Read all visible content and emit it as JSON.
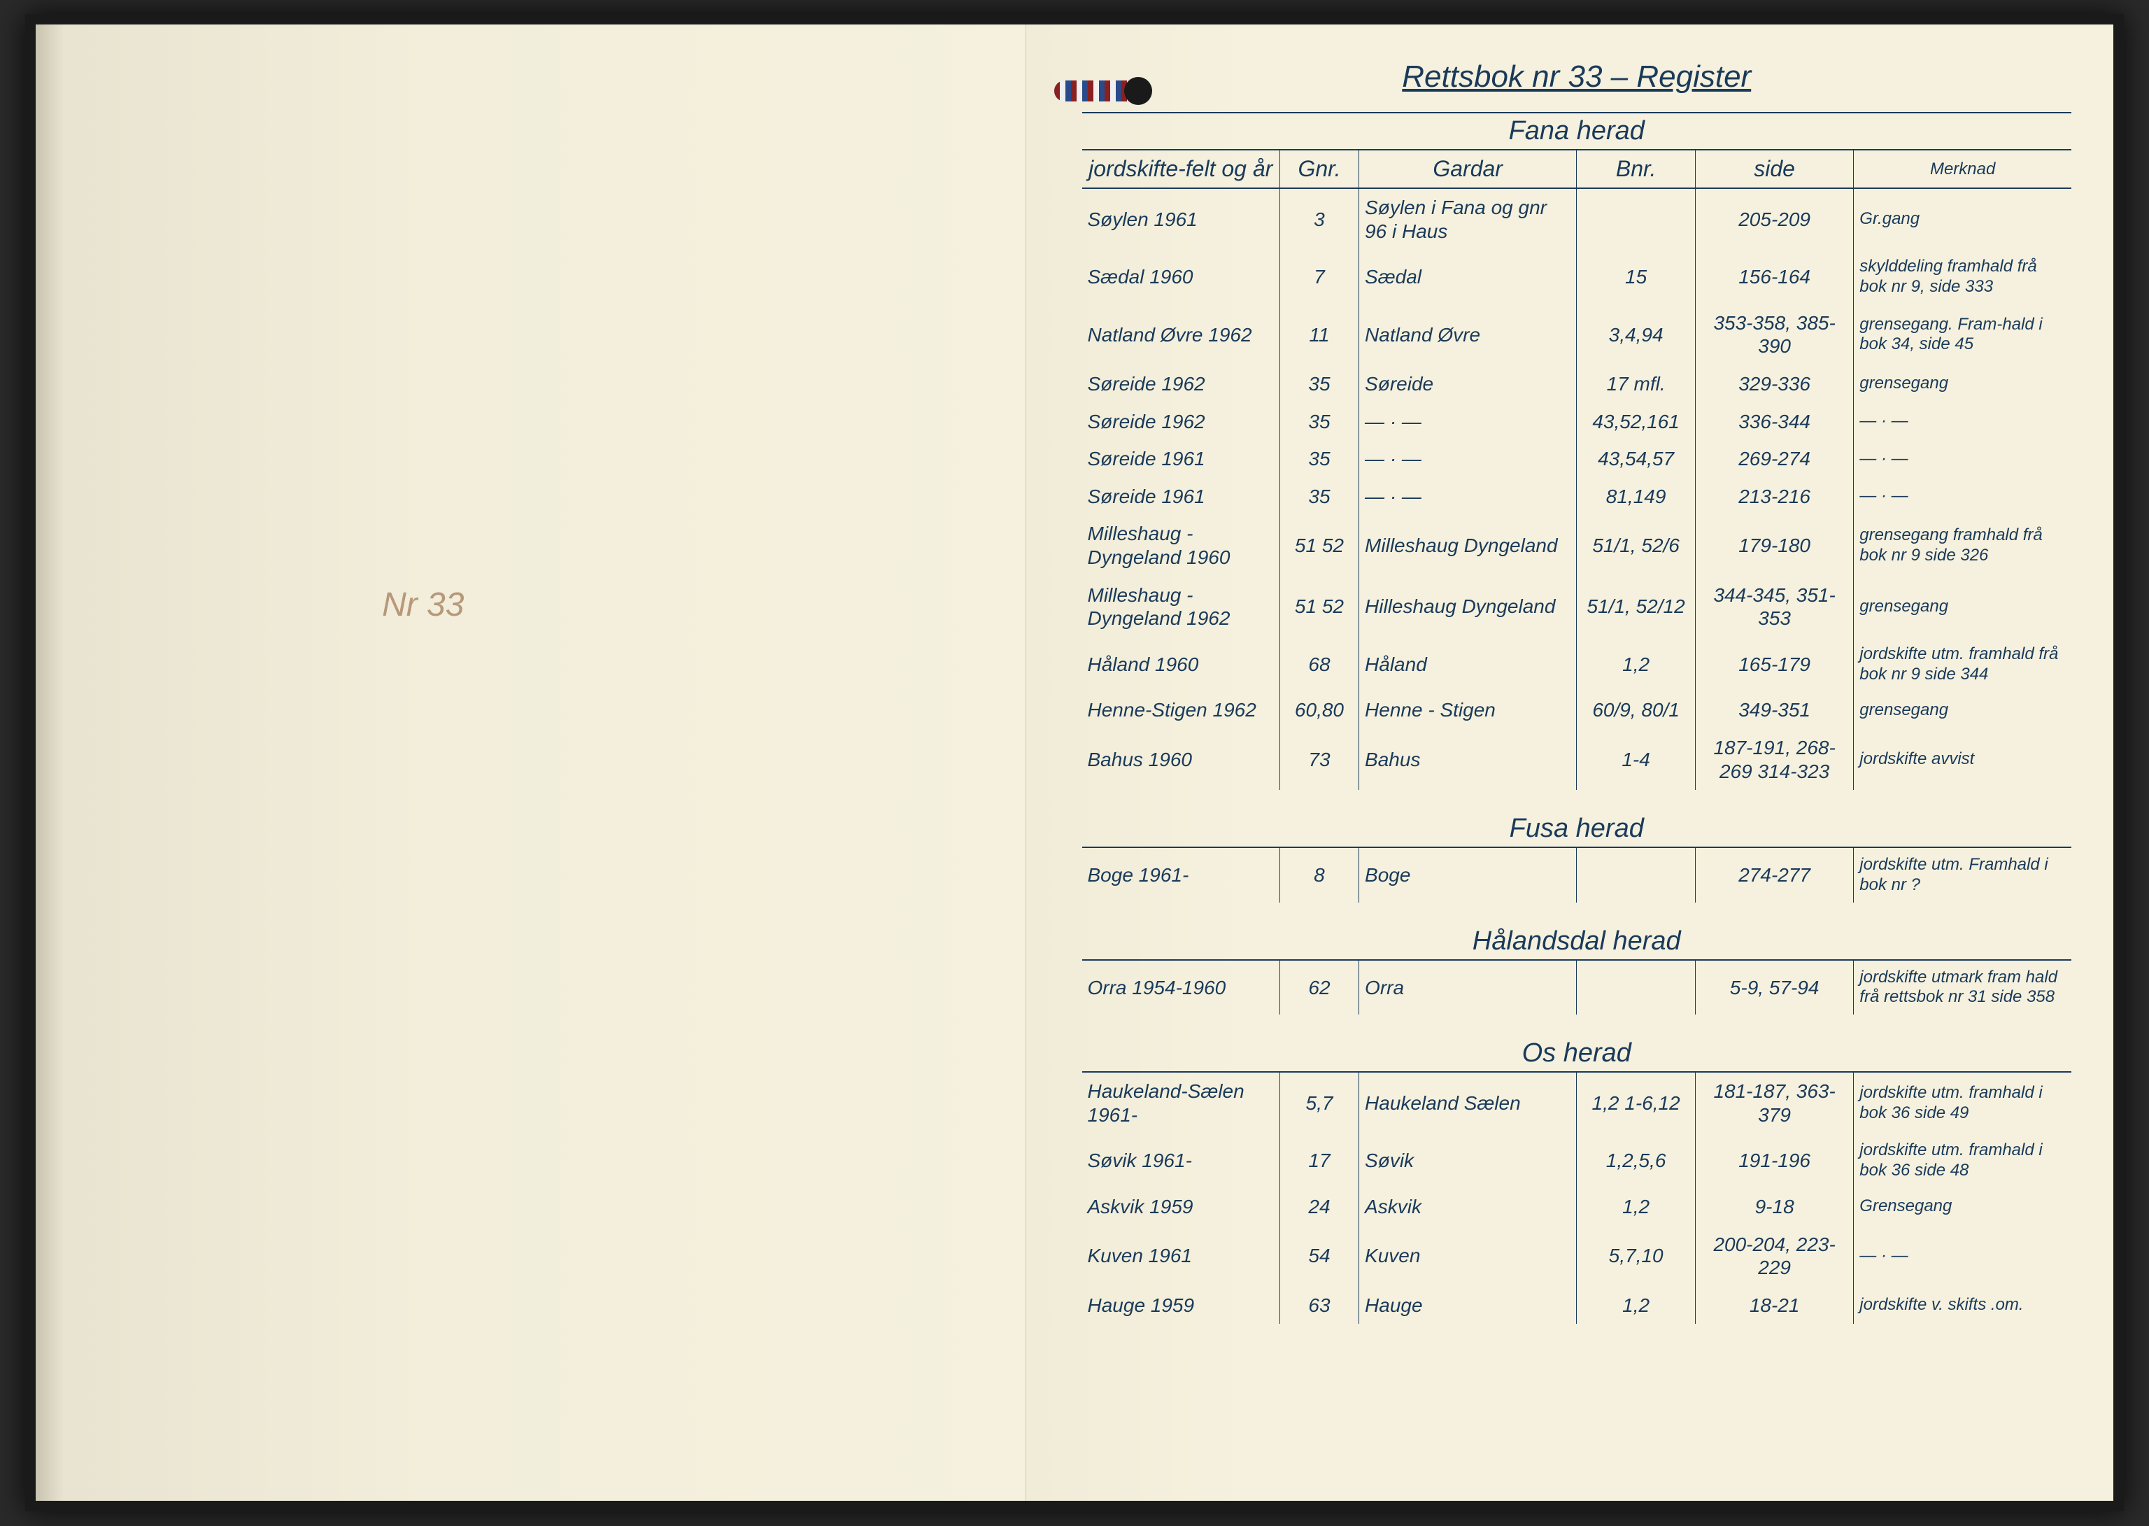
{
  "left_page": {
    "label": "Nr 33"
  },
  "title": "Rettsbok nr 33 – Register",
  "columns": {
    "felt": "jordskifte-felt og år",
    "gnr": "Gnr.",
    "gardar": "Gardar",
    "bnr": "Bnr.",
    "side": "side",
    "merknad": "Merknad"
  },
  "sections": [
    {
      "name": "Fana herad",
      "rows": [
        {
          "felt": "Søylen 1961",
          "gnr": "3",
          "gardar": "Søylen i Fana og gnr 96 i Haus",
          "bnr": "",
          "side": "205-209",
          "merknad": "Gr.gang"
        },
        {
          "felt": "Sædal 1960",
          "gnr": "7",
          "gardar": "Sædal",
          "bnr": "15",
          "side": "156-164",
          "merknad": "skylddeling framhald frå bok nr 9, side 333"
        },
        {
          "felt": "Natland Øvre 1962",
          "gnr": "11",
          "gardar": "Natland Øvre",
          "bnr": "3,4,94",
          "side": "353-358, 385-390",
          "merknad": "grensegang. Fram-hald i bok 34, side 45"
        },
        {
          "felt": "Søreide 1962",
          "gnr": "35",
          "gardar": "Søreide",
          "bnr": "17 mfl.",
          "side": "329-336",
          "merknad": "grensegang"
        },
        {
          "felt": "Søreide 1962",
          "gnr": "35",
          "gardar": "— · —",
          "bnr": "43,52,161",
          "side": "336-344",
          "merknad": "— · —"
        },
        {
          "felt": "Søreide 1961",
          "gnr": "35",
          "gardar": "— · —",
          "bnr": "43,54,57",
          "side": "269-274",
          "merknad": "— · —"
        },
        {
          "felt": "Søreide 1961",
          "gnr": "35",
          "gardar": "— · —",
          "bnr": "81,149",
          "side": "213-216",
          "merknad": "— · —"
        },
        {
          "felt": "Milleshaug - Dyngeland 1960",
          "gnr": "51 52",
          "gardar": "Milleshaug Dyngeland",
          "bnr": "51/1, 52/6",
          "side": "179-180",
          "merknad": "grensegang framhald frå bok nr 9 side 326"
        },
        {
          "felt": "Milleshaug - Dyngeland 1962",
          "gnr": "51 52",
          "gardar": "Hilleshaug Dyngeland",
          "bnr": "51/1, 52/12",
          "side": "344-345, 351-353",
          "merknad": "grensegang"
        },
        {
          "felt": "Håland 1960",
          "gnr": "68",
          "gardar": "Håland",
          "bnr": "1,2",
          "side": "165-179",
          "merknad": "jordskifte utm. framhald frå bok nr 9 side 344"
        },
        {
          "felt": "Henne-Stigen 1962",
          "gnr": "60,80",
          "gardar": "Henne - Stigen",
          "bnr": "60/9, 80/1",
          "side": "349-351",
          "merknad": "grensegang"
        },
        {
          "felt": "Bahus 1960",
          "gnr": "73",
          "gardar": "Bahus",
          "bnr": "1-4",
          "side": "187-191, 268-269 314-323",
          "merknad": "jordskifte avvist"
        }
      ]
    },
    {
      "name": "Fusa herad",
      "rows": [
        {
          "felt": "Boge 1961-",
          "gnr": "8",
          "gardar": "Boge",
          "bnr": "",
          "side": "274-277",
          "merknad": "jordskifte utm. Framhald i bok nr ?"
        }
      ]
    },
    {
      "name": "Hålandsdal herad",
      "rows": [
        {
          "felt": "Orra 1954-1960",
          "gnr": "62",
          "gardar": "Orra",
          "bnr": "",
          "side": "5-9, 57-94",
          "merknad": "jordskifte utmark fram hald frå rettsbok nr 31 side 358"
        }
      ]
    },
    {
      "name": "Os herad",
      "rows": [
        {
          "felt": "Haukeland-Sælen 1961-",
          "gnr": "5,7",
          "gardar": "Haukeland Sælen",
          "bnr": "1,2 1-6,12",
          "side": "181-187, 363-379",
          "merknad": "jordskifte utm. framhald i bok 36 side 49"
        },
        {
          "felt": "Søvik 1961-",
          "gnr": "17",
          "gardar": "Søvik",
          "bnr": "1,2,5,6",
          "side": "191-196",
          "merknad": "jordskifte utm. framhald i bok 36 side 48"
        },
        {
          "felt": "Askvik 1959",
          "gnr": "24",
          "gardar": "Askvik",
          "bnr": "1,2",
          "side": "9-18",
          "merknad": "Grensegang"
        },
        {
          "felt": "Kuven 1961",
          "gnr": "54",
          "gardar": "Kuven",
          "bnr": "5,7,10",
          "side": "200-204, 223-229",
          "merknad": "— · —"
        },
        {
          "felt": "Hauge 1959",
          "gnr": "63",
          "gardar": "Hauge",
          "bnr": "1,2",
          "side": "18-21",
          "merknad": "jordskifte v. skifts .om."
        }
      ]
    }
  ],
  "colors": {
    "ink": "#1a3a5a",
    "paper": "#f5f1de",
    "background": "#2a2a2a"
  }
}
